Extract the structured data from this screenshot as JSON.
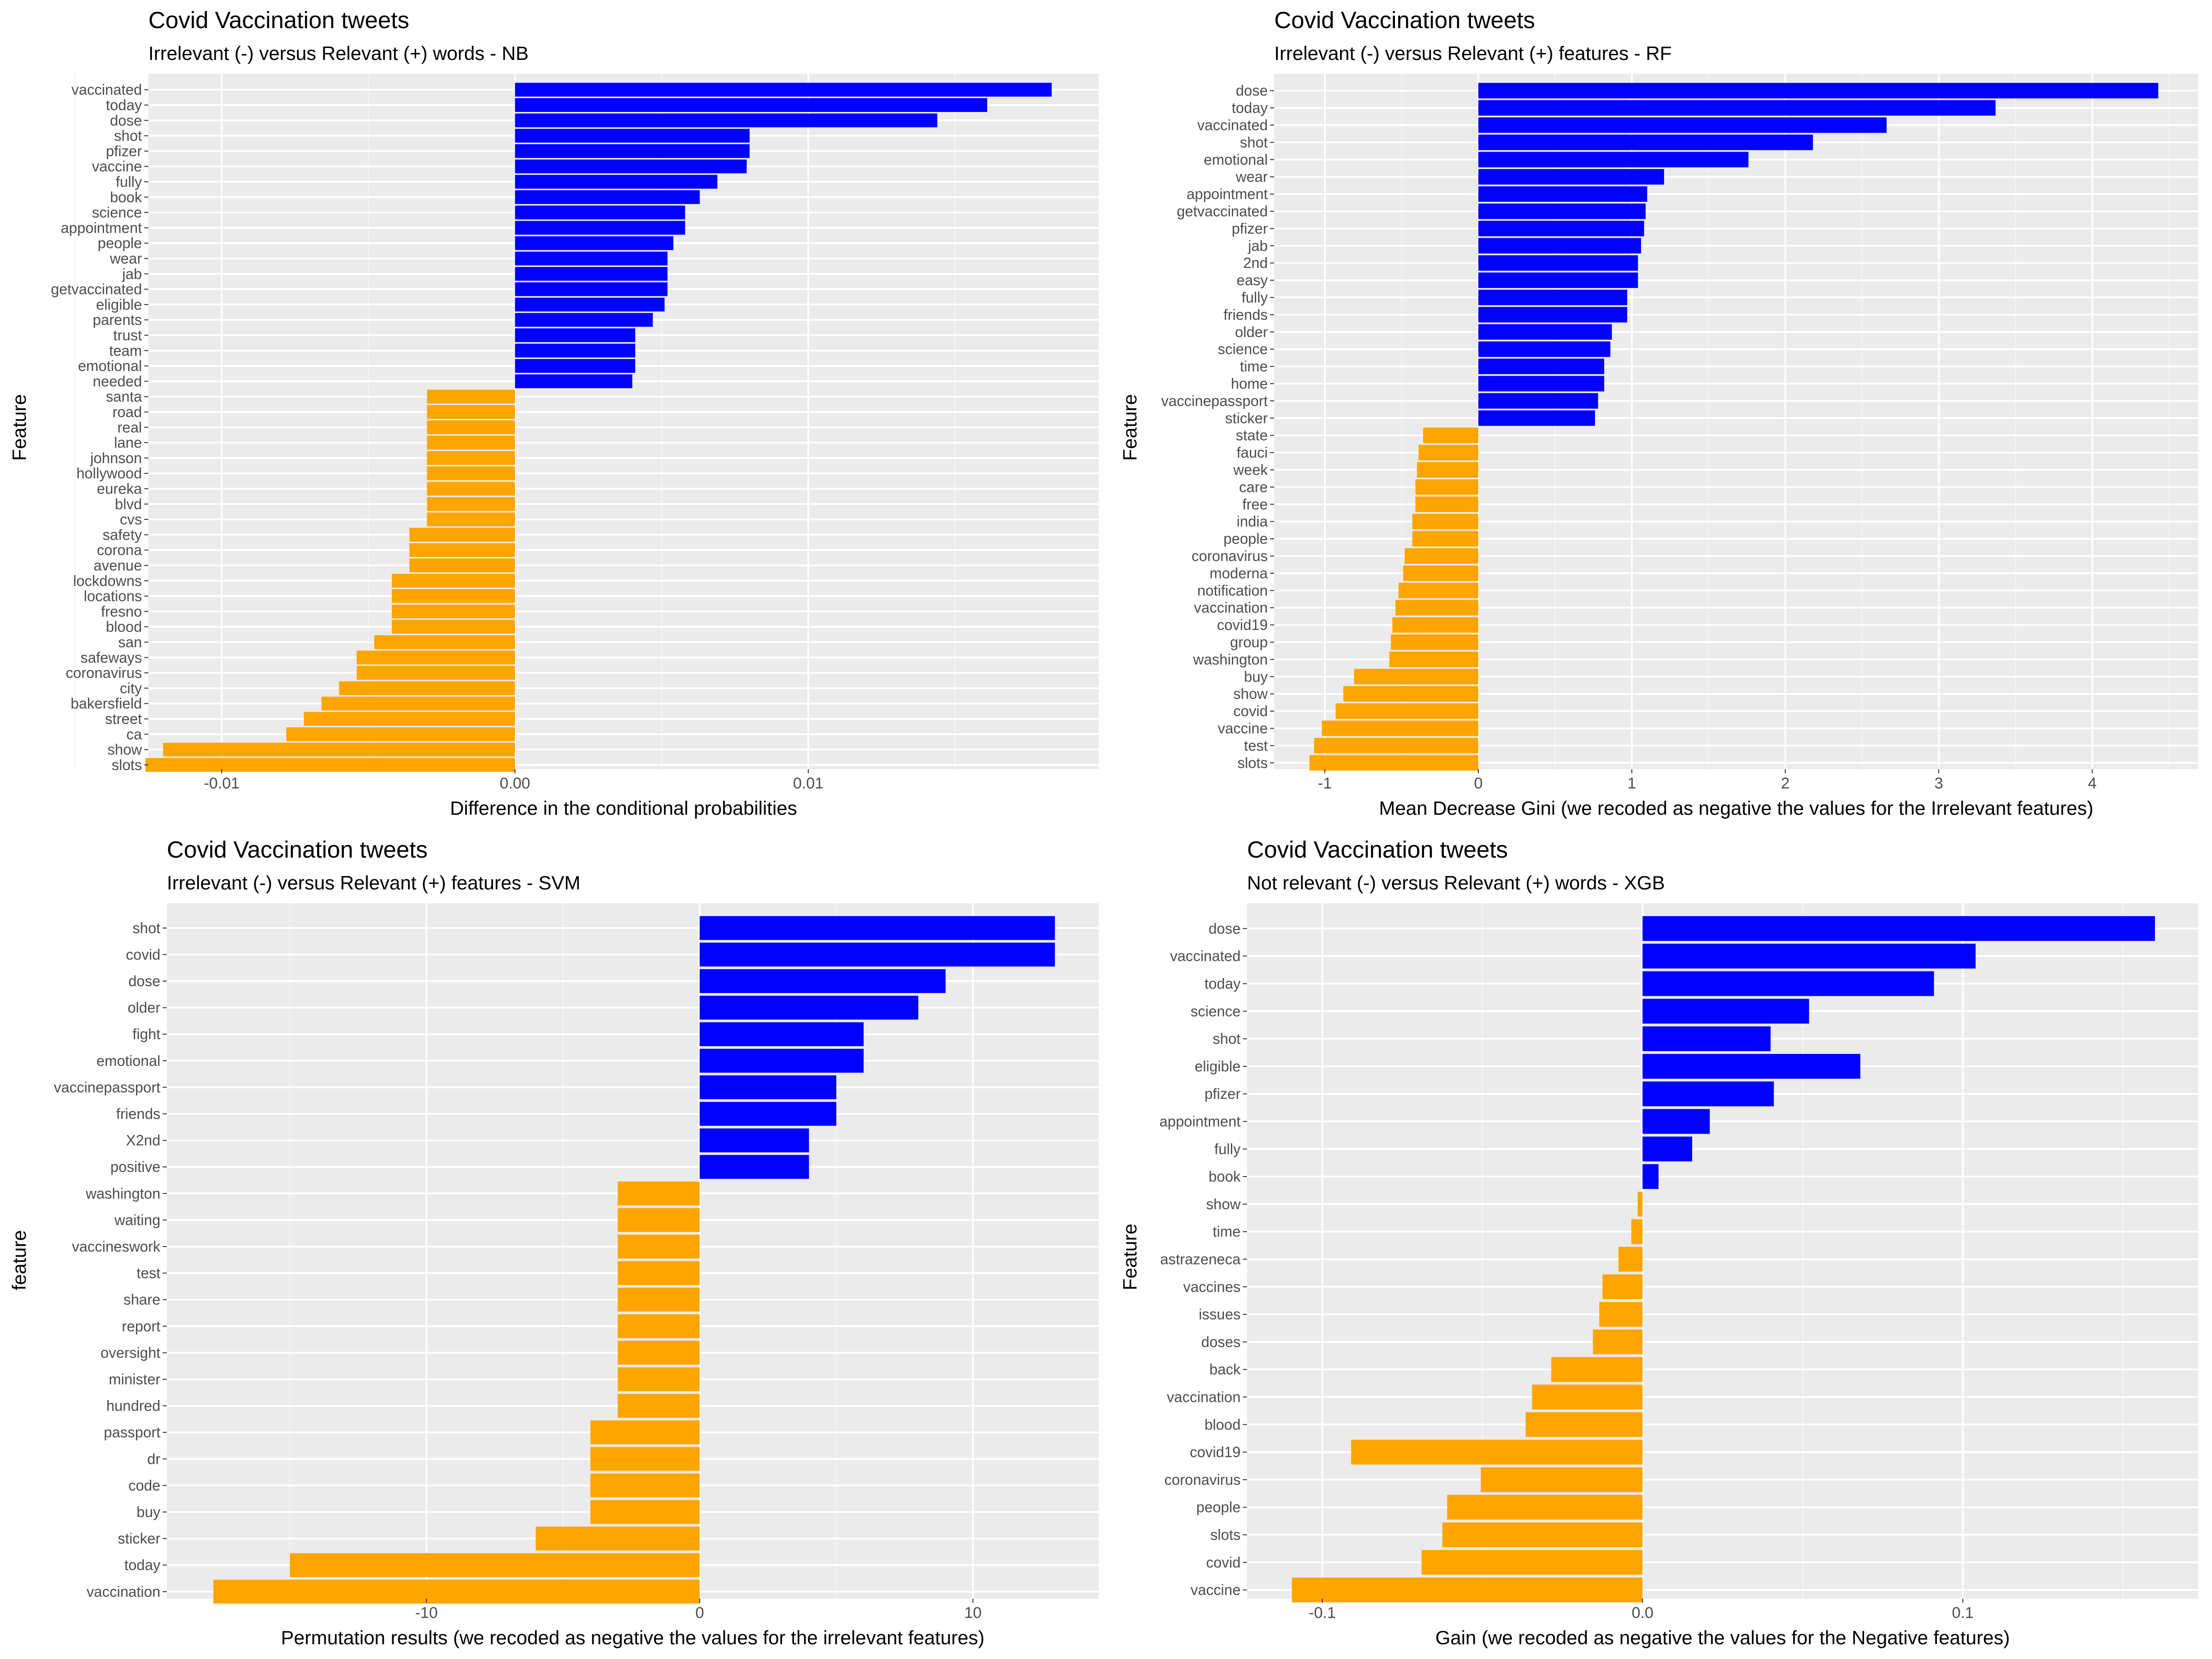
{
  "colors": {
    "relevant": "#0000FF",
    "irrelevant": "#FFA500",
    "panel_bg": "#EBEBEB",
    "grid_major": "#FFFFFF",
    "grid_minor": "#F5F5F5",
    "tick_text": "#4D4D4D"
  },
  "chart_data": [
    {
      "type": "bar",
      "orientation": "horizontal",
      "title": "Covid Vaccination tweets",
      "subtitle": "Irrelevant (-) versus Relevant (+) words - NB",
      "xlabel": "Difference in the conditional probabilities",
      "ylabel": "Feature",
      "xlim": [
        -0.0125,
        0.0199
      ],
      "xticks": [
        -0.01,
        0,
        0.01
      ],
      "xtick_labels": [
        "-0.01",
        "0.00",
        "0.01"
      ],
      "xminor": [
        -0.015,
        -0.005,
        0.005,
        0.015
      ],
      "categories": [
        "vaccinated",
        "today",
        "dose",
        "shot",
        "pfizer",
        "vaccine",
        "fully",
        "book",
        "science",
        "appointment",
        "people",
        "wear",
        "jab",
        "getvaccinated",
        "eligible",
        "parents",
        "trust",
        "team",
        "emotional",
        "needed",
        "santa",
        "road",
        "real",
        "lane",
        "johnson",
        "hollywood",
        "eureka",
        "blvd",
        "cvs",
        "safety",
        "corona",
        "avenue",
        "lockdowns",
        "locations",
        "fresno",
        "blood",
        "san",
        "safeways",
        "coronavirus",
        "city",
        "bakersfield",
        "street",
        "ca",
        "show",
        "slots"
      ],
      "values": [
        0.0183,
        0.0161,
        0.0144,
        0.008,
        0.008,
        0.0079,
        0.0069,
        0.0063,
        0.0058,
        0.0058,
        0.0054,
        0.0052,
        0.0052,
        0.0052,
        0.0051,
        0.0047,
        0.0041,
        0.0041,
        0.0041,
        0.004,
        -0.003,
        -0.003,
        -0.003,
        -0.003,
        -0.003,
        -0.003,
        -0.003,
        -0.003,
        -0.003,
        -0.0036,
        -0.0036,
        -0.0036,
        -0.0042,
        -0.0042,
        -0.0042,
        -0.0042,
        -0.0048,
        -0.0054,
        -0.0054,
        -0.006,
        -0.0066,
        -0.0072,
        -0.0078,
        -0.012,
        -0.0126
      ]
    },
    {
      "type": "bar",
      "orientation": "horizontal",
      "title": "Covid Vaccination tweets",
      "subtitle": "Irrelevant (-) versus Relevant (+) features - RF",
      "xlabel": "Mean Decrease Gini (we recoded as negative the values for the Irrelevant features)",
      "ylabel": "Feature",
      "xlim": [
        -1.33,
        4.69
      ],
      "xticks": [
        -1,
        0,
        1,
        2,
        3,
        4
      ],
      "xtick_labels": [
        "-1",
        "0",
        "1",
        "2",
        "3",
        "4"
      ],
      "xminor": [
        -0.5,
        0.5,
        1.5,
        2.5,
        3.5,
        4.5
      ],
      "categories": [
        "dose",
        "today",
        "vaccinated",
        "shot",
        "emotional",
        "wear",
        "appointment",
        "getvaccinated",
        "pfizer",
        "jab",
        "2nd",
        "easy",
        "fully",
        "friends",
        "older",
        "science",
        "time",
        "home",
        "vaccinepassport",
        "sticker",
        "state",
        "fauci",
        "week",
        "care",
        "free",
        "india",
        "people",
        "coronavirus",
        "moderna",
        "notification",
        "vaccination",
        "covid19",
        "group",
        "washington",
        "buy",
        "show",
        "covid",
        "vaccine",
        "test",
        "slots"
      ],
      "values": [
        4.43,
        3.37,
        2.66,
        2.18,
        1.76,
        1.21,
        1.1,
        1.09,
        1.08,
        1.06,
        1.04,
        1.04,
        0.97,
        0.97,
        0.87,
        0.86,
        0.82,
        0.82,
        0.78,
        0.76,
        -0.36,
        -0.39,
        -0.4,
        -0.41,
        -0.41,
        -0.43,
        -0.43,
        -0.48,
        -0.49,
        -0.52,
        -0.54,
        -0.56,
        -0.57,
        -0.58,
        -0.81,
        -0.88,
        -0.93,
        -1.02,
        -1.07,
        -1.1
      ]
    },
    {
      "type": "bar",
      "orientation": "horizontal",
      "title": "Covid Vaccination tweets",
      "subtitle": "Irrelevant (-) versus Relevant (+) features - SVM",
      "xlabel": "Permutation results (we recoded as negative the values for the irrelevant features)",
      "ylabel": "feature",
      "xlim": [
        -19.5,
        14.6
      ],
      "xticks": [
        -10,
        0,
        10
      ],
      "xtick_labels": [
        "-10",
        "0",
        "10"
      ],
      "xminor": [
        -15,
        -5,
        5
      ],
      "categories": [
        "shot",
        "covid",
        "dose",
        "older",
        "fight",
        "emotional",
        "vaccinepassport",
        "friends",
        "X2nd",
        "positive",
        "washington",
        "waiting",
        "vaccineswork",
        "test",
        "share",
        "report",
        "oversight",
        "minister",
        "hundred",
        "passport",
        "dr",
        "code",
        "buy",
        "sticker",
        "today",
        "vaccination"
      ],
      "values": [
        13,
        13,
        9,
        8,
        6,
        6,
        5,
        5,
        4,
        4,
        -3,
        -3,
        -3,
        -3,
        -3,
        -3,
        -3,
        -3,
        -3,
        -4,
        -4,
        -4,
        -4,
        -6,
        -15,
        -17.8
      ]
    },
    {
      "type": "bar",
      "orientation": "horizontal",
      "title": "Covid Vaccination tweets",
      "subtitle": "Not relevant (-) versus Relevant (+) words - XGB",
      "xlabel": "Gain (we recoded as negative the values for the Negative features)",
      "ylabel": "Feature",
      "xlim": [
        -0.1235,
        0.1735
      ],
      "xticks": [
        -0.1,
        0,
        0.1
      ],
      "xtick_labels": [
        "-0.1",
        "0.0",
        "0.1"
      ],
      "xminor": [
        -0.05,
        0.05,
        0.15
      ],
      "categories": [
        "dose",
        "vaccinated",
        "today",
        "science",
        "shot",
        "eligible",
        "pfizer",
        "appointment",
        "fully",
        "book",
        "show",
        "time",
        "astrazeneca",
        "vaccines",
        "issues",
        "doses",
        "back",
        "vaccination",
        "blood",
        "covid19",
        "coronavirus",
        "people",
        "slots",
        "covid",
        "vaccine"
      ],
      "values": [
        0.16,
        0.104,
        0.091,
        0.052,
        0.04,
        0.068,
        0.041,
        0.021,
        0.0155,
        0.005,
        -0.0015,
        -0.0035,
        -0.0075,
        -0.0125,
        -0.0135,
        -0.0155,
        -0.0285,
        -0.0345,
        -0.0365,
        -0.091,
        -0.0505,
        -0.061,
        -0.0625,
        -0.069,
        -0.1095
      ]
    }
  ]
}
